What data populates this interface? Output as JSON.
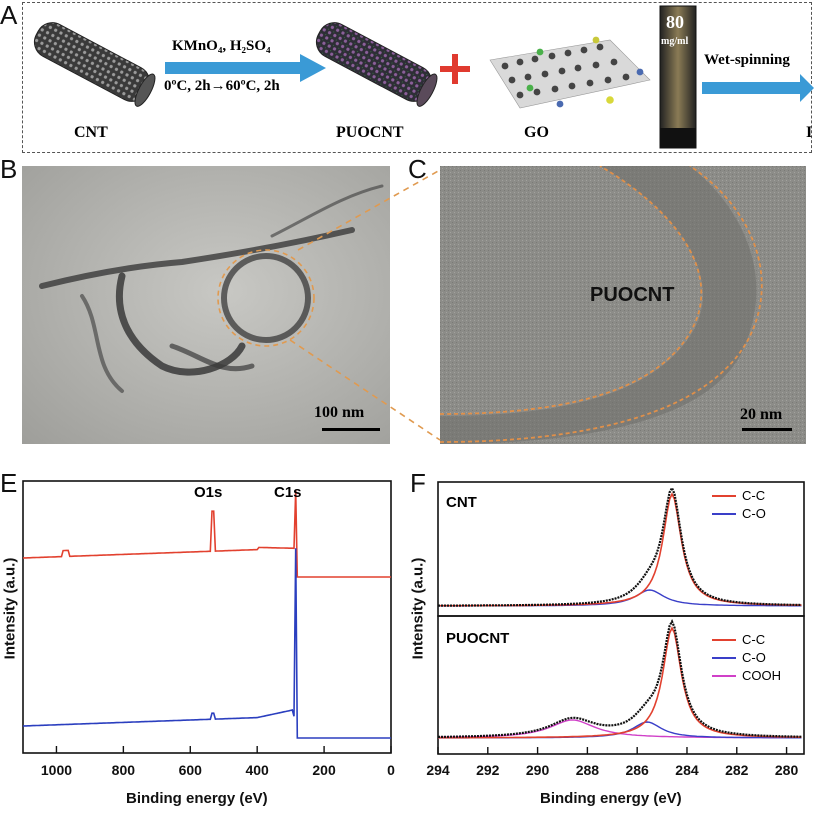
{
  "panels": {
    "a": "A",
    "b": "B",
    "c": "C",
    "e": "E",
    "f": "F"
  },
  "scheme": {
    "cnt_label": "CNT",
    "puocnt_label": "PUOCNT",
    "go_label": "GO",
    "reagents_line1": "KMnO₄, H₂SO₄",
    "reagents_line2": "0ºC, 2h→60ºC, 2h",
    "vial_line1": "80",
    "vial_line2": "mg/ml",
    "wet_spinning": "Wet-spinning",
    "cut_label": "I",
    "plus_color": "#e03a2f",
    "arrow_color": "#3a9ad6"
  },
  "tem_b": {
    "scale": "100 nm"
  },
  "tem_c": {
    "label": "PUOCNT",
    "scale": "20 nm"
  },
  "xps_e": {
    "ylabel": "Intensity (a.u.)",
    "xlabel": "Binding energy (eV)",
    "peak_o1s": "O1s",
    "peak_c1s": "C1s",
    "xticks": [
      "1000",
      "800",
      "600",
      "400",
      "200",
      "0"
    ],
    "xlim": [
      1100,
      0
    ],
    "series": [
      {
        "color": "#e2412f"
      },
      {
        "color": "#2b3fbf"
      }
    ]
  },
  "xps_f": {
    "ylabel": "Intensity (a.u.)",
    "xlabel": "Binding energy (eV)",
    "xticks": [
      "294",
      "292",
      "290",
      "288",
      "286",
      "284",
      "282",
      "280"
    ],
    "xlim": [
      294,
      279.3
    ],
    "top": {
      "title": "CNT",
      "legend": [
        {
          "name": "C-C",
          "color": "#e2412f"
        },
        {
          "name": "C-O",
          "color": "#3a3fc8"
        }
      ]
    },
    "bottom": {
      "title": "PUOCNT",
      "legend": [
        {
          "name": "C-C",
          "color": "#e2412f"
        },
        {
          "name": "C-O",
          "color": "#3a3fc8"
        },
        {
          "name": "COOH",
          "color": "#d040c8"
        }
      ]
    }
  },
  "chart_data": [
    {
      "type": "line",
      "xlabel": "Binding energy (eV)",
      "ylabel": "Intensity (a.u.)",
      "xlim": [
        1100,
        0
      ],
      "annotations": [
        "O1s",
        "C1s"
      ],
      "peaks_ev": {
        "O1s": 532,
        "C1s": 284.6
      }
    },
    {
      "type": "line",
      "xlabel": "Binding energy (eV)",
      "ylabel": "Intensity (a.u.)",
      "xlim": [
        294,
        279.3
      ],
      "panels": [
        {
          "name": "CNT",
          "components": [
            {
              "name": "C-C",
              "center_ev": 284.6
            },
            {
              "name": "C-O",
              "center_ev": 285.5
            }
          ]
        },
        {
          "name": "PUOCNT",
          "components": [
            {
              "name": "C-C",
              "center_ev": 284.6
            },
            {
              "name": "C-O",
              "center_ev": 285.6
            },
            {
              "name": "COOH",
              "center_ev": 288.6
            }
          ]
        }
      ]
    }
  ]
}
